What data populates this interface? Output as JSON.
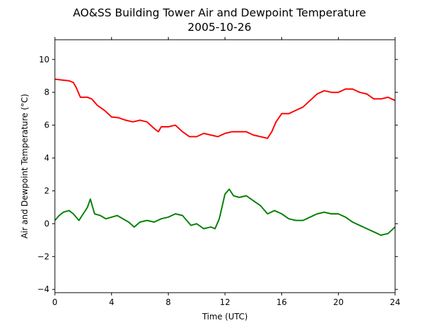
{
  "chart_data": {
    "type": "line",
    "title": "AO&SS Building Tower Air and Dewpoint Temperature",
    "subtitle": "2005-10-26",
    "xlabel": "Time (UTC)",
    "ylabel": "Air and Dewpoint Temperature (°C)",
    "xlim": [
      0,
      24
    ],
    "ylim": [
      -4.2,
      11.2
    ],
    "xticks": [
      0,
      4,
      8,
      12,
      16,
      20,
      24
    ],
    "yticks": [
      -4,
      -2,
      0,
      2,
      4,
      6,
      8,
      10
    ],
    "grid": false,
    "legend": "none",
    "series": [
      {
        "color": "#ff0000",
        "x": [
          0,
          0.5,
          1,
          1.3,
          1.5,
          1.8,
          2.3,
          2.6,
          3,
          3.5,
          4,
          4.5,
          5,
          5.5,
          6,
          6.5,
          7,
          7.3,
          7.5,
          8,
          8.5,
          9,
          9.5,
          10,
          10.5,
          11,
          11.5,
          12,
          12.5,
          13,
          13.5,
          14,
          14.5,
          15,
          15.3,
          15.6,
          16,
          16.5,
          17,
          17.5,
          18,
          18.5,
          19,
          19.5,
          20,
          20.5,
          21,
          21.5,
          22,
          22.5,
          23,
          23.5,
          24
        ],
        "y": [
          8.8,
          8.75,
          8.7,
          8.6,
          8.3,
          7.7,
          7.7,
          7.6,
          7.2,
          6.9,
          6.5,
          6.45,
          6.3,
          6.2,
          6.3,
          6.2,
          5.8,
          5.6,
          5.9,
          5.9,
          6.0,
          5.6,
          5.3,
          5.3,
          5.5,
          5.4,
          5.3,
          5.5,
          5.6,
          5.6,
          5.6,
          5.4,
          5.3,
          5.2,
          5.6,
          6.2,
          6.7,
          6.7,
          6.9,
          7.1,
          7.5,
          7.9,
          8.1,
          8.0,
          8.0,
          8.2,
          8.2,
          8.0,
          7.9,
          7.6,
          7.6,
          7.7,
          7.5
        ]
      },
      {
        "color": "#008000",
        "x": [
          0,
          0.3,
          0.6,
          1,
          1.3,
          1.7,
          2,
          2.3,
          2.5,
          2.8,
          3.2,
          3.6,
          4,
          4.4,
          4.8,
          5.2,
          5.6,
          6,
          6.5,
          7,
          7.5,
          8,
          8.5,
          9,
          9.3,
          9.6,
          10,
          10.5,
          11,
          11.3,
          11.6,
          12,
          12.3,
          12.6,
          13,
          13.5,
          14,
          14.5,
          15,
          15.5,
          16,
          16.5,
          17,
          17.5,
          18,
          18.5,
          19,
          19.5,
          20,
          20.5,
          21,
          21.5,
          22,
          22.5,
          23,
          23.5,
          24
        ],
        "y": [
          0.2,
          0.5,
          0.7,
          0.8,
          0.6,
          0.2,
          0.6,
          1.0,
          1.5,
          0.6,
          0.5,
          0.3,
          0.4,
          0.5,
          0.3,
          0.1,
          -0.2,
          0.1,
          0.2,
          0.1,
          0.3,
          0.4,
          0.6,
          0.5,
          0.2,
          -0.1,
          0.0,
          -0.3,
          -0.2,
          -0.3,
          0.3,
          1.8,
          2.1,
          1.7,
          1.6,
          1.7,
          1.4,
          1.1,
          0.6,
          0.8,
          0.6,
          0.3,
          0.2,
          0.2,
          0.4,
          0.6,
          0.7,
          0.6,
          0.6,
          0.4,
          0.1,
          -0.1,
          -0.3,
          -0.5,
          -0.7,
          -0.6,
          -0.2
        ]
      }
    ]
  }
}
